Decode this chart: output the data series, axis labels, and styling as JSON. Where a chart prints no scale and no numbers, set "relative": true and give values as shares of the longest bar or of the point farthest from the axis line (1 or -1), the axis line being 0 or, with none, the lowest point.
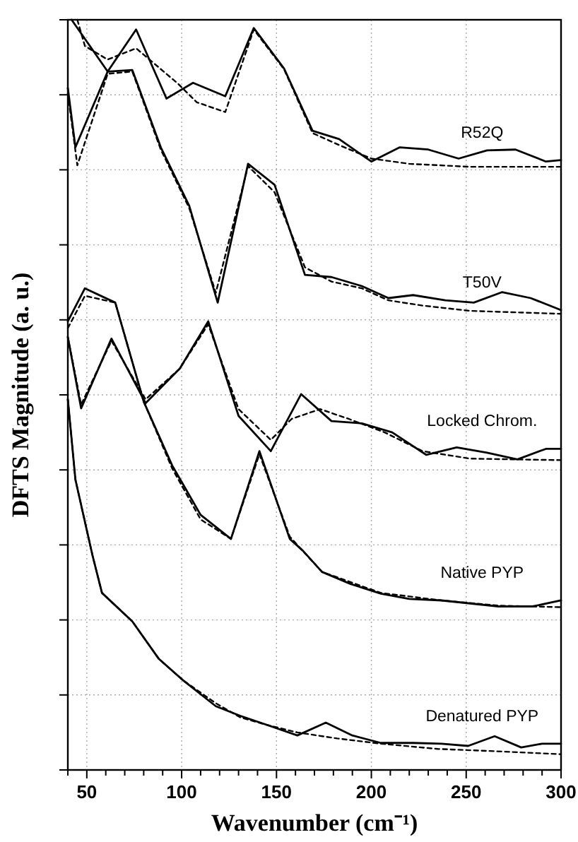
{
  "chart_data": {
    "type": "line",
    "relative": true,
    "xlabel": "Wavenumber (cm⁻¹)",
    "ylabel": "DFTS Magnitude (a. u.)",
    "xlim": [
      40,
      300
    ],
    "xticks": [
      {
        "value": 40,
        "label": null
      },
      50,
      {
        "value": 60,
        "label": null
      },
      {
        "value": 70,
        "label": null
      },
      {
        "value": 80,
        "label": null
      },
      {
        "value": 90,
        "label": null
      },
      100,
      {
        "value": 110,
        "label": null
      },
      {
        "value": 120,
        "label": null
      },
      {
        "value": 130,
        "label": null
      },
      {
        "value": 140,
        "label": null
      },
      150,
      {
        "value": 160,
        "label": null
      },
      {
        "value": 170,
        "label": null
      },
      {
        "value": 180,
        "label": null
      },
      {
        "value": 190,
        "label": null
      },
      200,
      {
        "value": 210,
        "label": null
      },
      {
        "value": 220,
        "label": null
      },
      {
        "value": 230,
        "label": null
      },
      {
        "value": 240,
        "label": null
      },
      250,
      {
        "value": 260,
        "label": null
      },
      {
        "value": 270,
        "label": null
      },
      {
        "value": 280,
        "label": null
      },
      {
        "value": 290,
        "label": null
      },
      300
    ],
    "grid": true,
    "marker": "none",
    "tick_labels": "x",
    "series": [
      {
        "name": "R52Q",
        "color": "#000000",
        "line_style": "solid",
        "x": [
          42,
          61,
          76,
          92,
          106,
          123,
          138,
          154,
          169,
          183,
          200,
          215,
          230,
          246,
          261,
          276,
          292,
          300
        ],
        "values": [
          1.0,
          0.931,
          0.987,
          0.895,
          0.916,
          0.898,
          0.989,
          0.935,
          0.852,
          0.841,
          0.811,
          0.83,
          0.827,
          0.815,
          0.826,
          0.827,
          0.811,
          0.813
        ]
      },
      {
        "color": "#000000",
        "line_style": "dashed",
        "x": [
          45,
          49,
          61,
          76,
          98,
          108,
          123,
          138,
          154,
          169,
          183,
          200,
          220,
          252,
          300
        ],
        "values": [
          1.0,
          0.965,
          0.947,
          0.962,
          0.915,
          0.89,
          0.877,
          0.987,
          0.934,
          0.849,
          0.833,
          0.815,
          0.808,
          0.804,
          0.804
        ]
      },
      {
        "name": "T50V",
        "color": "#000000",
        "line_style": "solid",
        "x": [
          40,
          44,
          61,
          74,
          89,
          104,
          119,
          135,
          149,
          165,
          179,
          195,
          209,
          222,
          239,
          254,
          269,
          284,
          300
        ],
        "values": [
          0.909,
          0.83,
          0.931,
          0.933,
          0.83,
          0.752,
          0.623,
          0.808,
          0.78,
          0.66,
          0.657,
          0.645,
          0.629,
          0.633,
          0.626,
          0.623,
          0.637,
          0.629,
          0.613
        ]
      },
      {
        "color": "#000000",
        "line_style": "dashed",
        "x": [
          40,
          45,
          61,
          74,
          89,
          104,
          118,
          135,
          149,
          165,
          179,
          195,
          209,
          227,
          252,
          300
        ],
        "values": [
          0.902,
          0.806,
          0.928,
          0.931,
          0.827,
          0.749,
          0.636,
          0.805,
          0.77,
          0.67,
          0.651,
          0.642,
          0.626,
          0.619,
          0.612,
          0.608
        ]
      },
      {
        "name": "Locked Chrom.",
        "color": "#000000",
        "line_style": "solid",
        "x": [
          40,
          47,
          63,
          81,
          99,
          114,
          130,
          147,
          163,
          179,
          195,
          211,
          229,
          245,
          261,
          277,
          292,
          300
        ],
        "values": [
          0.577,
          0.482,
          0.575,
          0.489,
          0.535,
          0.598,
          0.472,
          0.425,
          0.501,
          0.465,
          0.462,
          0.45,
          0.42,
          0.43,
          0.423,
          0.414,
          0.428,
          0.428
        ]
      },
      {
        "color": "#000000",
        "line_style": "dashed",
        "x": [
          40,
          47,
          63,
          81,
          99,
          114,
          130,
          147,
          158,
          173,
          188,
          207,
          227,
          252,
          300
        ],
        "values": [
          0.577,
          0.487,
          0.572,
          0.494,
          0.535,
          0.594,
          0.481,
          0.44,
          0.468,
          0.481,
          0.468,
          0.45,
          0.425,
          0.415,
          0.413
        ]
      },
      {
        "name": "Native PYP",
        "color": "#000000",
        "line_style": "solid",
        "x": [
          40,
          49,
          65,
          80,
          95,
          110,
          126,
          141,
          157,
          164,
          174,
          189,
          205,
          220,
          237,
          252,
          267,
          285,
          300
        ],
        "values": [
          0.598,
          0.642,
          0.623,
          0.491,
          0.406,
          0.34,
          0.308,
          0.425,
          0.308,
          0.292,
          0.264,
          0.248,
          0.235,
          0.228,
          0.226,
          0.222,
          0.218,
          0.218,
          0.226
        ]
      },
      {
        "color": "#000000",
        "line_style": "dashed",
        "x": [
          40,
          49,
          65,
          80,
          95,
          110,
          126,
          141,
          157,
          174,
          205,
          237,
          267,
          300
        ],
        "values": [
          0.589,
          0.632,
          0.623,
          0.491,
          0.402,
          0.334,
          0.308,
          0.421,
          0.311,
          0.264,
          0.236,
          0.226,
          0.219,
          0.217
        ]
      },
      {
        "name": "Denatured PYP",
        "color": "#000000",
        "line_style": "solid",
        "x": [
          40,
          44,
          53,
          58,
          74,
          88,
          101,
          118,
          131,
          145,
          161,
          176,
          190,
          205,
          222,
          237,
          251,
          265,
          279,
          290,
          300
        ],
        "values": [
          0.494,
          0.387,
          0.286,
          0.236,
          0.198,
          0.148,
          0.119,
          0.085,
          0.072,
          0.06,
          0.046,
          0.063,
          0.046,
          0.036,
          0.036,
          0.035,
          0.032,
          0.045,
          0.03,
          0.035,
          0.035
        ]
      },
      {
        "color": "#000000",
        "line_style": "dashed",
        "x": [
          40,
          44,
          53,
          58,
          74,
          88,
          101,
          118,
          131,
          145,
          161,
          182,
          205,
          235,
          265,
          300
        ],
        "values": [
          0.494,
          0.387,
          0.286,
          0.236,
          0.198,
          0.148,
          0.119,
          0.089,
          0.07,
          0.06,
          0.05,
          0.042,
          0.035,
          0.028,
          0.025,
          0.021
        ]
      }
    ]
  }
}
